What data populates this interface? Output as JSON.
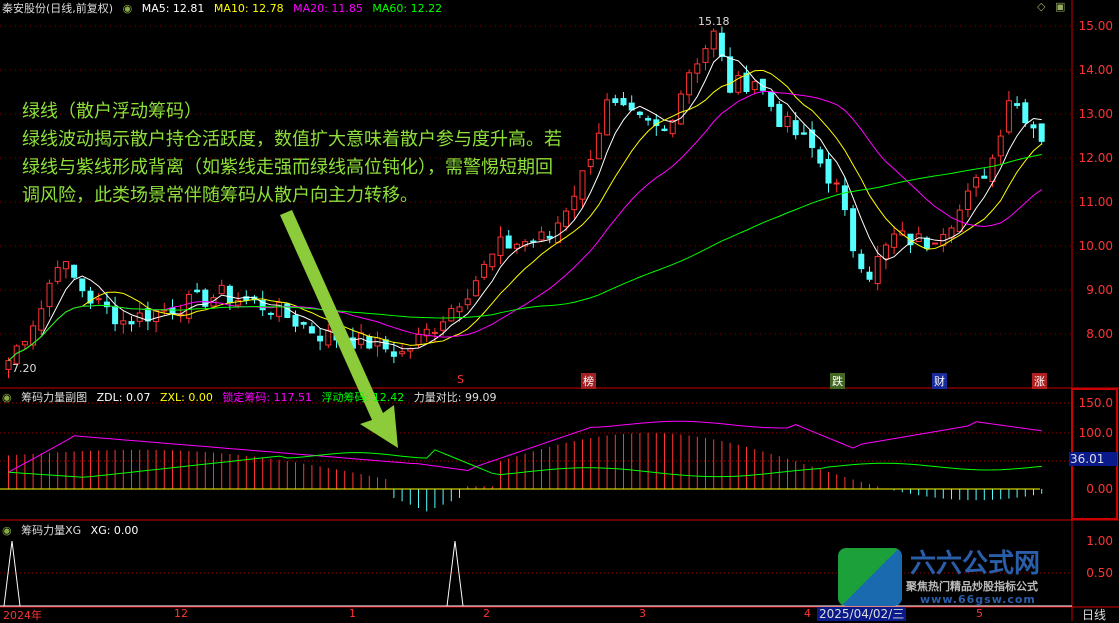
{
  "main_panel": {
    "stock_title": "秦安股份(日线,前复权)",
    "ma5": "MA5: 12.81",
    "ma10": "MA10: 12.78",
    "ma20": "MA20: 11.85",
    "ma60": "MA60: 12.22",
    "high_label": "15.18",
    "low_label": "7.20",
    "price_ticks": [
      "15.00",
      "14.00",
      "13.00",
      "12.00",
      "11.00",
      "10.00",
      "9.00",
      "8.00"
    ],
    "markers": [
      {
        "text": "S",
        "color": "#ff3333"
      },
      {
        "text": "榜",
        "color": "#a02020"
      },
      {
        "text": "跌",
        "color": "#446622"
      },
      {
        "text": "财",
        "color": "#1a2a9a"
      },
      {
        "text": "涨",
        "color": "#b02020"
      }
    ],
    "colors": {
      "ma5": "#ffffff",
      "ma10": "#ffff00",
      "ma20": "#ff00ff",
      "ma60": "#00ff00",
      "up": "#ff3333",
      "down": "#54ffff"
    }
  },
  "annotation": {
    "title": "绿线（散户浮动筹码）",
    "body": "绿线波动揭示散户持仓活跃度，数值扩大意味着散户参与度升高。若绿线与紫线形成背离（如紫线走强而绿线高位钝化），需警惕短期回调风险，此类场景常伴随筹码从散户向主力转移。"
  },
  "indicator_panel": {
    "name": "筹码力量副图",
    "zdl": "ZDL: 0.07",
    "zxl": "ZXL: 0.00",
    "locked": "锁定筹码: 117.51",
    "floating": "浮动筹码: 12.42",
    "ratio": "力量对比: 99.09",
    "ticks": [
      "150.0",
      "100.0",
      "0.00"
    ],
    "current_value": "36.01"
  },
  "xg_panel": {
    "name": "筹码力量XG",
    "xg": "XG: 0.00",
    "ticks": [
      "1.00",
      "0.50"
    ]
  },
  "time_axis": {
    "labels": [
      "2024年",
      "12",
      "1",
      "2",
      "3",
      "4",
      "5"
    ],
    "cursor_date": "2025/04/02/三",
    "period": "日线"
  },
  "watermark": {
    "brand": "六六公式网",
    "slogan": "聚焦热门精品炒股指标公式",
    "url": "www.66gsw.com"
  }
}
